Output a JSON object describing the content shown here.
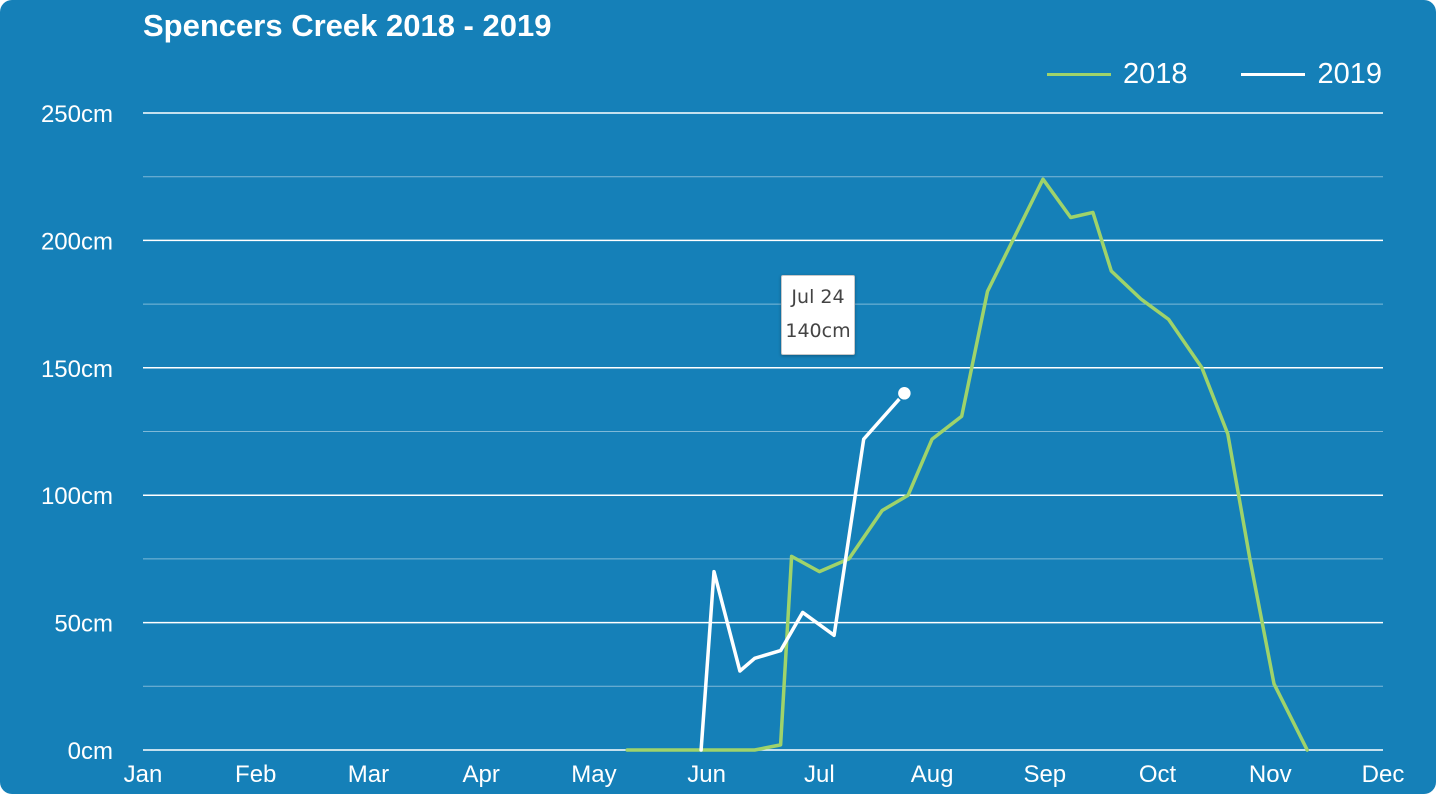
{
  "chart_data": {
    "type": "line",
    "title": "Spencers Creek 2018 - 2019",
    "y_unit": "cm",
    "ylim": [
      0,
      250
    ],
    "y_ticks": [
      0,
      50,
      100,
      150,
      200,
      250
    ],
    "y_tick_labels": [
      "0cm",
      "50cm",
      "100cm",
      "150cm",
      "200cm",
      "250cm"
    ],
    "months": [
      "Jan",
      "Feb",
      "Mar",
      "Apr",
      "May",
      "Jun",
      "Jul",
      "Aug",
      "Sep",
      "Oct",
      "Nov",
      "Dec"
    ],
    "grid": true,
    "legend_position": "top-right",
    "series": [
      {
        "name": "2018",
        "color": "#9fd36a",
        "points": [
          {
            "date": "May 10",
            "value": 0
          },
          {
            "date": "May 24",
            "value": 0
          },
          {
            "date": "Jun 7",
            "value": 0
          },
          {
            "date": "Jun 14",
            "value": 0
          },
          {
            "date": "Jun 21",
            "value": 2
          },
          {
            "date": "Jun 24",
            "value": 76
          },
          {
            "date": "Jul 1",
            "value": 70
          },
          {
            "date": "Jul 9",
            "value": 75
          },
          {
            "date": "Jul 18",
            "value": 94
          },
          {
            "date": "Jul 25",
            "value": 100
          },
          {
            "date": "Aug 1",
            "value": 122
          },
          {
            "date": "Aug 9",
            "value": 131
          },
          {
            "date": "Aug 16",
            "value": 180
          },
          {
            "date": "Aug 31",
            "value": 224
          },
          {
            "date": "Sep 8",
            "value": 209
          },
          {
            "date": "Sep 14",
            "value": 211
          },
          {
            "date": "Sep 19",
            "value": 188
          },
          {
            "date": "Sep 27",
            "value": 177
          },
          {
            "date": "Oct 4",
            "value": 169
          },
          {
            "date": "Oct 13",
            "value": 150
          },
          {
            "date": "Oct 20",
            "value": 124
          },
          {
            "date": "Oct 26",
            "value": 75
          },
          {
            "date": "Nov 2",
            "value": 26
          },
          {
            "date": "Nov 11",
            "value": 0
          }
        ]
      },
      {
        "name": "2019",
        "color": "#ffffff",
        "points": [
          {
            "date": "May 30",
            "value": 0
          },
          {
            "date": "Jun 3",
            "value": 70
          },
          {
            "date": "Jun 10",
            "value": 31
          },
          {
            "date": "Jun 14",
            "value": 36
          },
          {
            "date": "Jun 21",
            "value": 39
          },
          {
            "date": "Jun 27",
            "value": 54
          },
          {
            "date": "Jul 5",
            "value": 45
          },
          {
            "date": "Jul 13",
            "value": 122
          },
          {
            "date": "Jul 24",
            "value": 140
          }
        ]
      }
    ],
    "tooltip": {
      "date": "Jul 24",
      "value_label": "140cm",
      "series": "2019"
    }
  }
}
